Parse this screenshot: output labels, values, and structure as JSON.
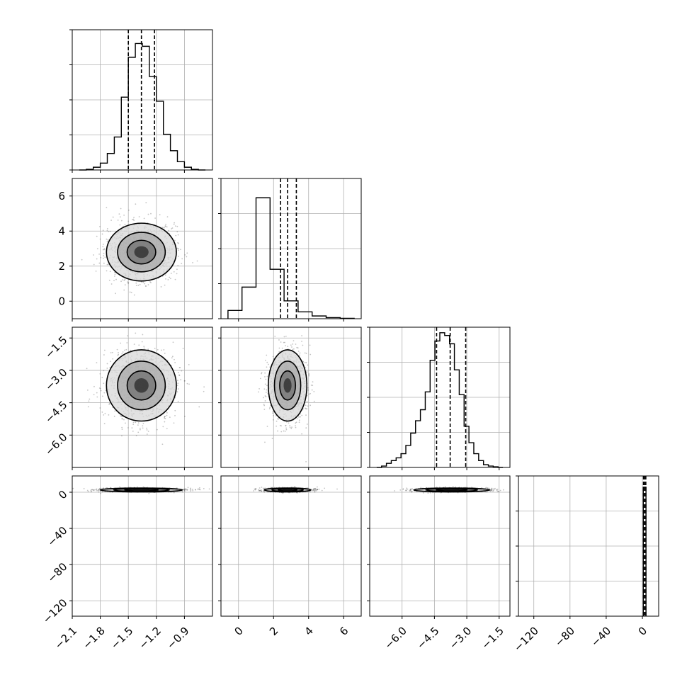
{
  "figure": {
    "type": "corner-plot",
    "n_params": 4
  },
  "colors": {
    "hist": "#000000",
    "grid": "#b0b0b0",
    "frame": "#000000",
    "scatter": "#555555",
    "background": "#ffffff"
  },
  "chart_data": {
    "type": "corner",
    "grid": true,
    "params": [
      {
        "ticks": [
          -2.1,
          -1.8,
          -1.5,
          -1.2,
          -0.9
        ],
        "tick_labels": [
          "−2.1",
          "−1.8",
          "−1.5",
          "−1.2",
          "−0.9"
        ],
        "range": [
          -2.1,
          -0.6
        ],
        "quantiles": [
          -1.5,
          -1.36,
          -1.22
        ],
        "hist": [
          0,
          0.005,
          0.02,
          0.05,
          0.12,
          0.24,
          0.53,
          0.82,
          0.92,
          0.9,
          0.68,
          0.5,
          0.26,
          0.14,
          0.06,
          0.02,
          0.005,
          0
        ]
      },
      {
        "ticks": [
          0,
          2,
          4,
          6
        ],
        "tick_labels": [
          "0",
          "2",
          "4",
          "6"
        ],
        "range": [
          -1,
          7
        ],
        "quantiles": [
          2.4,
          2.8,
          3.3
        ],
        "hist": [
          0.06,
          0.23,
          0.88,
          0.36,
          0.13,
          0.05,
          0.02,
          0.008,
          0.003
        ]
      },
      {
        "ticks": [
          -6.0,
          -4.5,
          -3.0,
          -1.5
        ],
        "tick_labels": [
          "−6.0",
          "−4.5",
          "−3.0",
          "−1.5"
        ],
        "ylabels": [
          "−1.5",
          "−3.0",
          "−4.5",
          "−6.0"
        ],
        "range": [
          -7.5,
          -1.0
        ],
        "quantiles": [
          -4.4,
          -3.77,
          -3.05
        ],
        "hist": [
          0,
          0.01,
          0.03,
          0.05,
          0.07,
          0.1,
          0.16,
          0.25,
          0.34,
          0.42,
          0.55,
          0.78,
          0.92,
          0.98,
          0.96,
          0.9,
          0.71,
          0.53,
          0.3,
          0.18,
          0.1,
          0.05,
          0.02,
          0.01,
          0.005,
          0
        ]
      },
      {
        "ticks": [
          -120,
          -80,
          -40,
          0
        ],
        "tick_labels": [
          "−120",
          "−80",
          "−40",
          "0"
        ],
        "ylabels": [
          "0",
          "−40",
          "−80",
          "−120"
        ],
        "range": [
          -137,
          18
        ],
        "quantiles": [
          1.2,
          2.5,
          3.8
        ],
        "hist_range": [
          1,
          4
        ],
        "hist_height": 0.92
      }
    ],
    "scatter_clouds": [
      {
        "row": 1,
        "col": 0,
        "center": [
          -1.36,
          2.8
        ],
        "sd": [
          0.17,
          0.75
        ]
      },
      {
        "row": 2,
        "col": 0,
        "center": [
          -1.36,
          -3.7
        ],
        "sd": [
          0.17,
          0.75
        ]
      },
      {
        "row": 2,
        "col": 1,
        "center": [
          2.8,
          -3.7
        ],
        "sd": [
          0.5,
          0.75
        ]
      },
      {
        "row": 3,
        "col": 0,
        "center": [
          -1.36,
          2.5
        ],
        "sd": [
          0.2,
          1.0
        ]
      },
      {
        "row": 3,
        "col": 1,
        "center": [
          2.8,
          2.5
        ],
        "sd": [
          0.6,
          1.0
        ]
      },
      {
        "row": 3,
        "col": 2,
        "center": [
          -3.7,
          2.5
        ],
        "sd": [
          0.8,
          1.0
        ]
      }
    ]
  }
}
